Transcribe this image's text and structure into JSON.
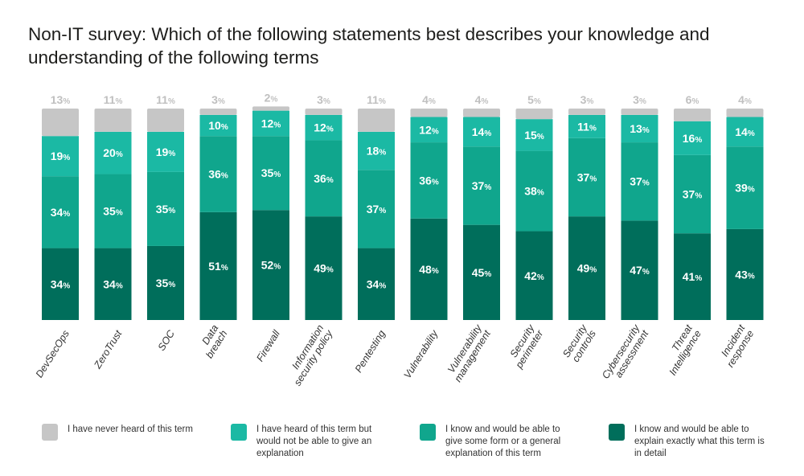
{
  "title": "Non-IT survey: Which of the following statements best describes your knowledge and understanding of the following terms",
  "chart_data": {
    "type": "bar",
    "stacked": true,
    "title": "Non-IT survey: Which of the following statements best describes your knowledge and understanding of the following terms",
    "categories": [
      [
        "DevSecOps"
      ],
      [
        "ZeroTrust"
      ],
      [
        "SOC"
      ],
      [
        "Data",
        "breach"
      ],
      [
        "Firewall"
      ],
      [
        "Information",
        "security policy"
      ],
      [
        "Pentesting"
      ],
      [
        "Vulnerability"
      ],
      [
        "Vulnerability",
        "management"
      ],
      [
        "Security",
        "perimeter"
      ],
      [
        "Security",
        "controls"
      ],
      [
        "Cybersecurity",
        "assessment"
      ],
      [
        "Threat",
        "Intelligence"
      ],
      [
        "Incident",
        "response"
      ]
    ],
    "series": [
      {
        "name": "I know and would be able to explain exactly what this term is in detail",
        "color": "#006e5b",
        "values": [
          34,
          34,
          35,
          51,
          52,
          49,
          34,
          48,
          45,
          42,
          49,
          47,
          41,
          43
        ]
      },
      {
        "name": "I know and would be able to give some form or a general explanation of this term",
        "color": "#10a68d",
        "values": [
          34,
          35,
          35,
          36,
          35,
          36,
          37,
          36,
          37,
          38,
          37,
          37,
          37,
          39
        ]
      },
      {
        "name": "I have heard of this term but would not be able to give an explanation",
        "color": "#1bb9a4",
        "values": [
          19,
          20,
          19,
          10,
          12,
          12,
          18,
          12,
          14,
          15,
          11,
          13,
          16,
          14
        ]
      },
      {
        "name": "I have never heard of this term",
        "color": "#c6c6c6",
        "values": [
          13,
          11,
          11,
          3,
          2,
          3,
          11,
          4,
          4,
          5,
          3,
          3,
          6,
          4
        ]
      }
    ],
    "unit": "%",
    "ylim": [
      0,
      100
    ],
    "grid": false,
    "legend_position": "bottom"
  },
  "legend": [
    {
      "label": "I have never heard of this term",
      "color": "#c6c6c6"
    },
    {
      "label": "I have heard of this term but would not be able to give an explanation",
      "color": "#1bb9a4"
    },
    {
      "label": "I know and would be able to give some form or a general explanation of this term",
      "color": "#10a68d"
    },
    {
      "label": "I know and would be able to explain exactly what this term is in detail",
      "color": "#006e5b"
    }
  ]
}
